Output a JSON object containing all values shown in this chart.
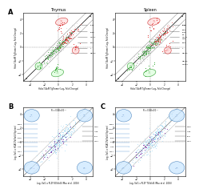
{
  "panel_A_left_title": "Thymus",
  "panel_A_right_title": "Spleen",
  "bg_color": "#ffffff",
  "ax_bg": "#ffffff",
  "scatter_green": "#33aa33",
  "scatter_red": "#dd3333",
  "scatter_gray": "#bbbbbb",
  "scatter_blue_dark": "#1a237e",
  "scatter_cyan": "#00aacc",
  "scatter_purple": "#9933cc"
}
